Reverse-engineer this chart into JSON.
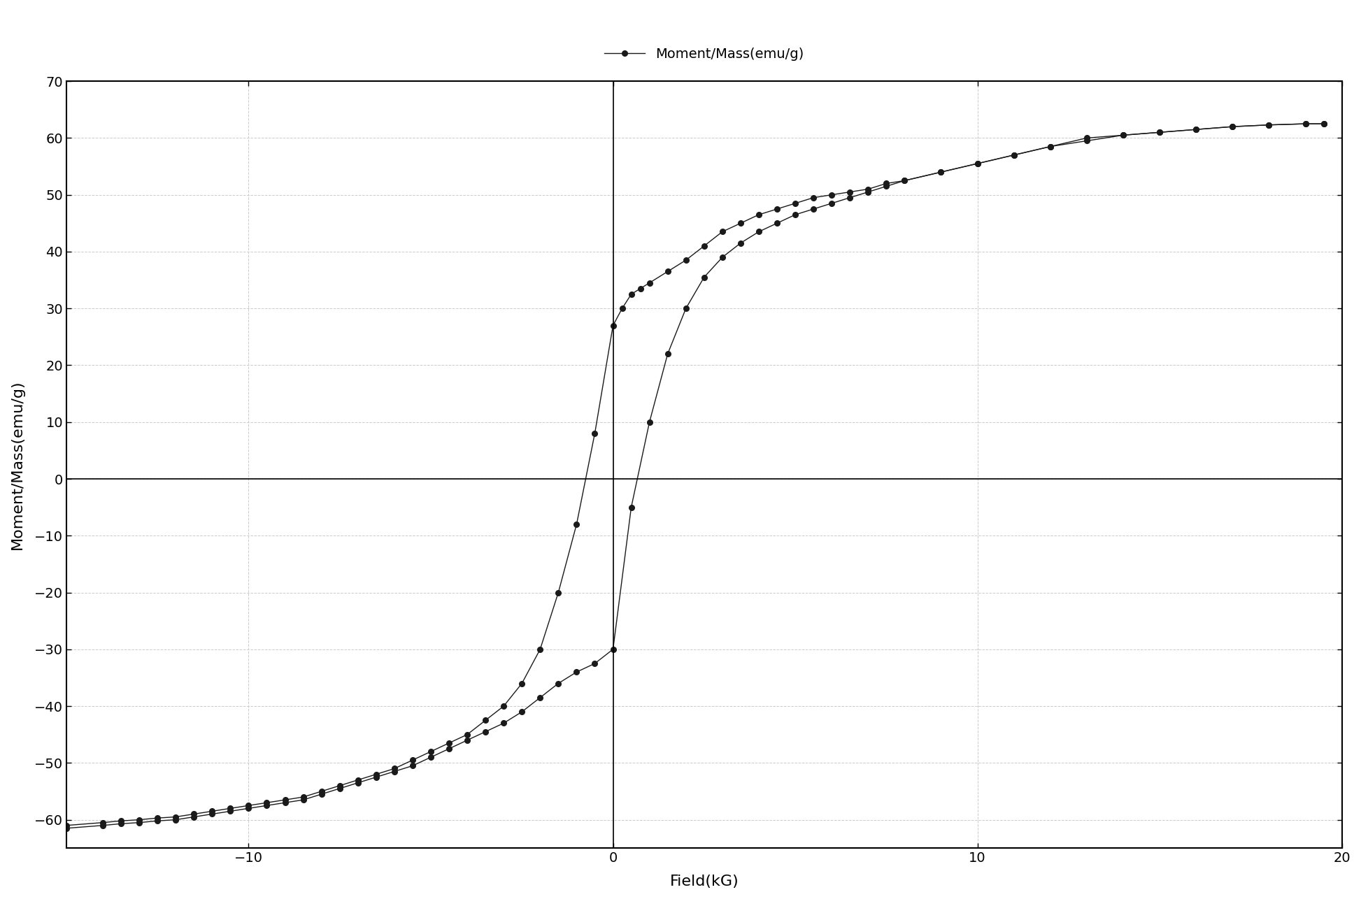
{
  "title": "",
  "xlabel": "Field(kG)",
  "ylabel": "Moment/Mass(emu/g)",
  "legend_label": "Moment/Mass(emu/g)",
  "xlim": [
    -15,
    20
  ],
  "ylim": [
    -65,
    70
  ],
  "xticks": [
    -10,
    0,
    10,
    20
  ],
  "yticks": [
    -60,
    -50,
    -40,
    -30,
    -20,
    -10,
    0,
    10,
    20,
    30,
    40,
    50,
    60,
    70
  ],
  "background_color": "#ffffff",
  "line_color": "#1a1a1a",
  "marker_color": "#1a1a1a",
  "grid_color": "#cccccc",
  "upper_branch_x": [
    -15.0,
    -14.0,
    -13.5,
    -13.0,
    -12.5,
    -12.0,
    -11.5,
    -11.0,
    -10.5,
    -10.0,
    -9.5,
    -9.0,
    -8.5,
    -8.0,
    -7.5,
    -7.0,
    -6.5,
    -6.0,
    -5.5,
    -5.0,
    -4.5,
    -4.0,
    -3.5,
    -3.0,
    -2.5,
    -2.0,
    -1.5,
    -1.0,
    -0.5,
    0.0,
    0.25,
    0.5,
    0.75,
    1.0,
    1.5,
    2.0,
    2.5,
    3.0,
    3.5,
    4.0,
    4.5,
    5.0,
    5.5,
    6.0,
    6.5,
    7.0,
    7.5,
    8.0,
    9.0,
    10.0,
    11.0,
    12.0,
    13.0,
    14.0,
    15.0,
    16.0,
    17.0,
    18.0,
    19.0,
    19.5
  ],
  "upper_branch_y": [
    -61.0,
    -60.5,
    -60.2,
    -60.0,
    -59.7,
    -59.5,
    -59.0,
    -58.5,
    -58.0,
    -57.5,
    -57.0,
    -56.5,
    -56.0,
    -55.0,
    -54.0,
    -53.0,
    -52.0,
    -51.0,
    -49.5,
    -48.0,
    -46.5,
    -45.0,
    -42.5,
    -40.0,
    -36.0,
    -30.0,
    -20.0,
    -8.0,
    8.0,
    27.0,
    30.0,
    32.5,
    33.5,
    34.5,
    36.5,
    38.5,
    41.0,
    43.5,
    45.0,
    46.5,
    47.5,
    48.5,
    49.5,
    50.0,
    50.5,
    51.0,
    52.0,
    52.5,
    54.0,
    55.5,
    57.0,
    58.5,
    59.5,
    60.5,
    61.0,
    61.5,
    62.0,
    62.3,
    62.5,
    62.5
  ],
  "lower_branch_x": [
    19.5,
    19.0,
    18.0,
    17.0,
    16.0,
    15.0,
    14.0,
    13.0,
    12.0,
    11.0,
    10.0,
    9.0,
    8.0,
    7.5,
    7.0,
    6.5,
    6.0,
    5.5,
    5.0,
    4.5,
    4.0,
    3.5,
    3.0,
    2.5,
    2.0,
    1.5,
    1.0,
    0.5,
    0.0,
    -0.5,
    -1.0,
    -1.5,
    -2.0,
    -2.5,
    -3.0,
    -3.5,
    -4.0,
    -4.5,
    -5.0,
    -5.5,
    -6.0,
    -6.5,
    -7.0,
    -7.5,
    -8.0,
    -8.5,
    -9.0,
    -9.5,
    -10.0,
    -10.5,
    -11.0,
    -11.5,
    -12.0,
    -12.5,
    -13.0,
    -13.5,
    -14.0,
    -15.0
  ],
  "lower_branch_y": [
    62.5,
    62.5,
    62.3,
    62.0,
    61.5,
    61.0,
    60.5,
    60.0,
    58.5,
    57.0,
    55.5,
    54.0,
    52.5,
    51.5,
    50.5,
    49.5,
    48.5,
    47.5,
    46.5,
    45.0,
    43.5,
    41.5,
    39.0,
    35.5,
    30.0,
    22.0,
    10.0,
    -5.0,
    -30.0,
    -32.5,
    -34.0,
    -36.0,
    -38.5,
    -41.0,
    -43.0,
    -44.5,
    -46.0,
    -47.5,
    -49.0,
    -50.5,
    -51.5,
    -52.5,
    -53.5,
    -54.5,
    -55.5,
    -56.5,
    -57.0,
    -57.5,
    -58.0,
    -58.5,
    -59.0,
    -59.5,
    -60.0,
    -60.2,
    -60.5,
    -60.7,
    -61.0,
    -61.5
  ]
}
